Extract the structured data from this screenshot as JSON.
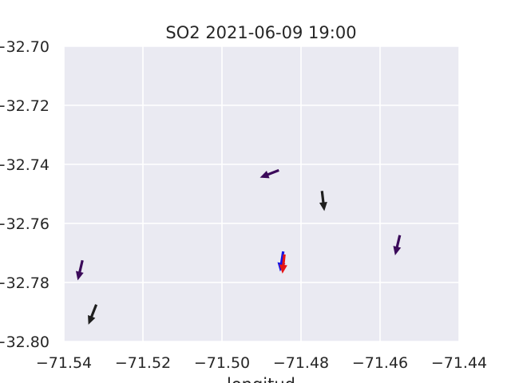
{
  "chart_data": {
    "type": "quiver",
    "title": "SO2 2021-06-09 19:00",
    "xlabel": "longitud",
    "ylabel": "",
    "xlim": [
      -71.54,
      -71.44
    ],
    "ylim": [
      -32.8,
      -32.7
    ],
    "xticks": [
      -71.54,
      -71.52,
      -71.5,
      -71.48,
      -71.46,
      -71.44
    ],
    "xtick_labels": [
      "−71.54",
      "−71.52",
      "−71.50",
      "−71.48",
      "−71.46",
      "−71.44"
    ],
    "yticks": [
      -32.7,
      -32.72,
      -32.74,
      -32.76,
      -32.78,
      -32.8
    ],
    "ytick_labels": [
      "−32.70",
      "−32.72",
      "−32.74",
      "−32.76",
      "−32.78",
      "−32.80"
    ],
    "grid": true,
    "background_color": "#eaeaf2",
    "arrows": [
      {
        "x": -71.4856,
        "y": -32.742,
        "u": -0.0048,
        "v": -0.0025,
        "color": "#3b0a5a"
      },
      {
        "x": -71.4747,
        "y": -32.749,
        "u": 0.0006,
        "v": -0.0068,
        "color": "#1f1f1f"
      },
      {
        "x": -71.4845,
        "y": -32.7695,
        "u": -0.0008,
        "v": -0.0068,
        "color": "#1515e6"
      },
      {
        "x": -71.4842,
        "y": -32.7705,
        "u": -0.0005,
        "v": -0.0065,
        "color": "#e61515"
      },
      {
        "x": -71.455,
        "y": -32.764,
        "u": -0.0012,
        "v": -0.0068,
        "color": "#3b0a5a"
      },
      {
        "x": -71.5353,
        "y": -32.7725,
        "u": -0.0012,
        "v": -0.0068,
        "color": "#3b0a5a"
      },
      {
        "x": -71.5318,
        "y": -32.7875,
        "u": -0.002,
        "v": -0.0068,
        "color": "#1f1f1f"
      }
    ]
  }
}
